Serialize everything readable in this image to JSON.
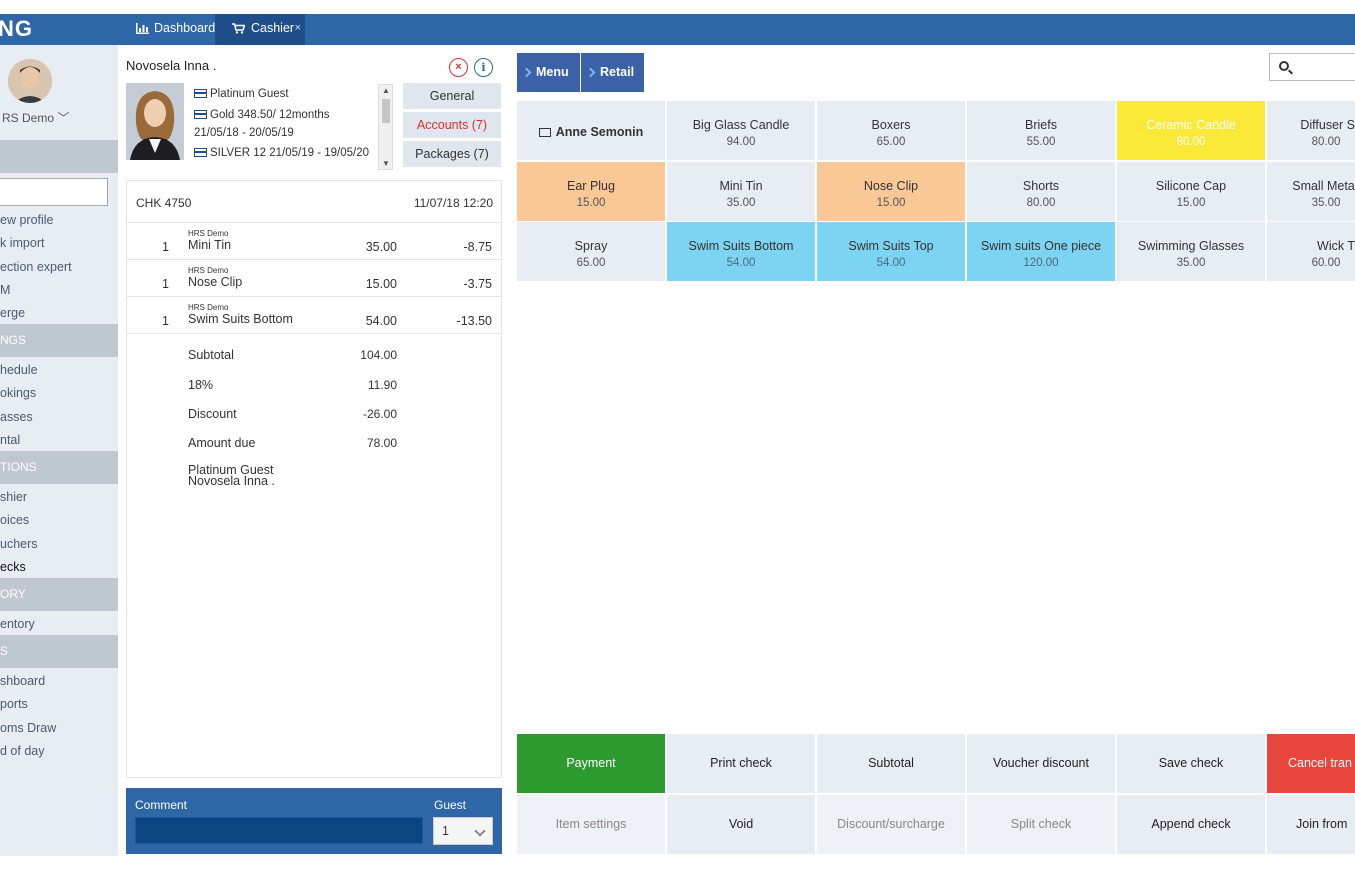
{
  "app": {
    "logo": "NG",
    "tabs": [
      {
        "label": "Dashboard"
      },
      {
        "label": "Cashier",
        "close": "×"
      }
    ]
  },
  "sidebar": {
    "user_name": "RS Demo ﹀",
    "sections": [
      {
        "title": "",
        "items": []
      },
      {
        "title": "",
        "items": [
          "ew profile",
          "k import",
          "ection expert",
          "M",
          "erge"
        ]
      },
      {
        "title": "NGS",
        "items": [
          "hedule",
          "okings",
          "asses",
          "ntal"
        ]
      },
      {
        "title": "TIONS",
        "items": [
          "shier",
          "oices",
          "uchers",
          "ecks"
        ]
      },
      {
        "title": "ORY",
        "items": [
          "entory"
        ]
      },
      {
        "title": "S",
        "items": [
          "shboard",
          "ports",
          "oms Draw",
          "d of day"
        ]
      }
    ]
  },
  "guest": {
    "name": "Novosela Inna .",
    "cards": [
      "Platinum Guest",
      "Gold 348.50/ 12months",
      "21/05/18 - 20/05/19",
      "SILVER 12 21/05/19 - 19/05/20"
    ],
    "tabs": {
      "general": "General",
      "accounts": "Accounts (7)",
      "packages": "Packages (7)"
    }
  },
  "check": {
    "number": "CHK 4750",
    "date": "11/07/18 12:20",
    "lines": [
      {
        "qty": "1",
        "by": "HRS Demo",
        "name": "Mini Tin",
        "price": "35.00",
        "discount": "-8.75"
      },
      {
        "qty": "1",
        "by": "HRS Demo",
        "name": "Nose Clip",
        "price": "15.00",
        "discount": "-3.75"
      },
      {
        "qty": "1",
        "by": "HRS Demo",
        "name": "Swim Suits Bottom",
        "price": "54.00",
        "discount": "-13.50"
      }
    ],
    "totals": [
      {
        "label": "Subtotal",
        "value": "104.00"
      },
      {
        "label": "18%",
        "value": "11.90"
      },
      {
        "label": "Discount",
        "value": "-26.00"
      },
      {
        "label": "Amount due",
        "value": "78.00"
      }
    ],
    "footer": [
      "Platinum Guest",
      "Novosela Inna ."
    ]
  },
  "comment": {
    "label": "Comment",
    "guest_label": "Guest",
    "guest_value": "1"
  },
  "catalog": {
    "nav": {
      "menu": "Menu",
      "retail": "Retail"
    },
    "folder": "Anne Semonin",
    "products": [
      {
        "name": "Big Glass Candle",
        "price": "94.00"
      },
      {
        "name": "Boxers",
        "price": "65.00"
      },
      {
        "name": "Briefs",
        "price": "55.00"
      },
      {
        "name": "Ceramic Candle",
        "price": "80.00"
      },
      {
        "name": "Diffuser S",
        "price": "80.00"
      },
      {
        "name": "Ear Plug",
        "price": "15.00"
      },
      {
        "name": "Mini Tin",
        "price": "35.00"
      },
      {
        "name": "Nose Clip",
        "price": "15.00"
      },
      {
        "name": "Shorts",
        "price": "80.00"
      },
      {
        "name": "Silicone Cap",
        "price": "15.00"
      },
      {
        "name": "Small Meta",
        "price": "35.00"
      },
      {
        "name": "Spray",
        "price": "65.00"
      },
      {
        "name": "Swim Suits Bottom",
        "price": "54.00"
      },
      {
        "name": "Swim Suits Top",
        "price": "54.00"
      },
      {
        "name": "Swim suits One piece",
        "price": "120.00"
      },
      {
        "name": "Swimming Glasses",
        "price": "35.00"
      },
      {
        "name": "Wick T",
        "price": "60.00"
      }
    ],
    "colors": {
      "orange": "#fac896",
      "yellow": "#fbe93a",
      "blue": "#7dd3f2",
      "default": "#e8edf3"
    }
  },
  "actions": {
    "row1": [
      "Payment",
      "Print check",
      "Subtotal",
      "Voucher discount",
      "Save check",
      "Cancel tran"
    ],
    "row2": [
      "Item settings",
      "Void",
      "Discount/surcharge",
      "Split check",
      "Append check",
      "Join from"
    ]
  }
}
